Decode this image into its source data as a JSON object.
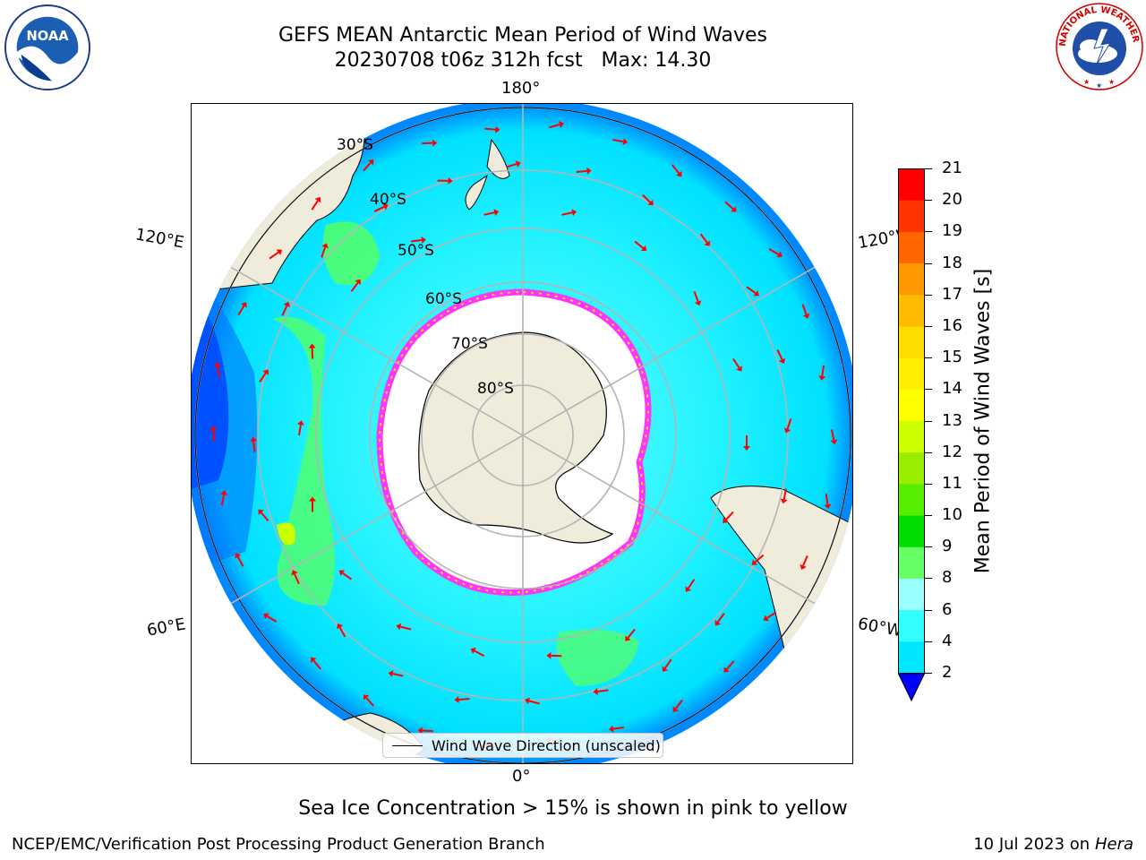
{
  "header": {
    "title_line1": "GEFS MEAN Antarctic Mean Period of Wind Waves",
    "title_line2": "20230708 t06z 312h fcst   Max: 14.30"
  },
  "logos": {
    "left": "NOAA",
    "right": "NATIONAL WEATHER SERVICE"
  },
  "map": {
    "projection": "south-polar-stereographic",
    "longitude_labels": {
      "top": "180°",
      "bottom": "0°",
      "left_upper": "120°E",
      "left_lower": "60°E",
      "right_upper": "120°W",
      "right_lower": "60°W"
    },
    "latitude_labels": [
      "30°S",
      "40°S",
      "50°S",
      "60°S",
      "70°S",
      "80°S"
    ],
    "legend_label": "Wind Wave Direction (unscaled)",
    "colors": {
      "land": "#efecdc",
      "ice_edge": "#ff33ff",
      "arrow": "#ff0000",
      "grid": "#b4b4b4"
    }
  },
  "colorbar": {
    "label": "Mean Period of Wind Waves [s]",
    "ticks": [
      "2",
      "4",
      "6",
      "8",
      "9",
      "10",
      "11",
      "12",
      "13",
      "14",
      "15",
      "16",
      "17",
      "18",
      "19",
      "20",
      "21"
    ],
    "colors": [
      "#0072ff",
      "#00e6ff",
      "#33ffff",
      "#99ffff",
      "#66ff66",
      "#00dd00",
      "#55ee00",
      "#99ee00",
      "#ccff00",
      "#ffff00",
      "#ffee00",
      "#ffdd00",
      "#ffbb00",
      "#ff9900",
      "#ff6600",
      "#ff3300",
      "#ff0000"
    ],
    "under_color": "#0000ff"
  },
  "caption": "Sea Ice Concentration > 15% is shown in pink to yellow",
  "footer": {
    "left": "NCEP/EMC/Verification Post Processing Product Generation Branch",
    "date": "10 Jul 2023 on ",
    "host": "Hera"
  }
}
